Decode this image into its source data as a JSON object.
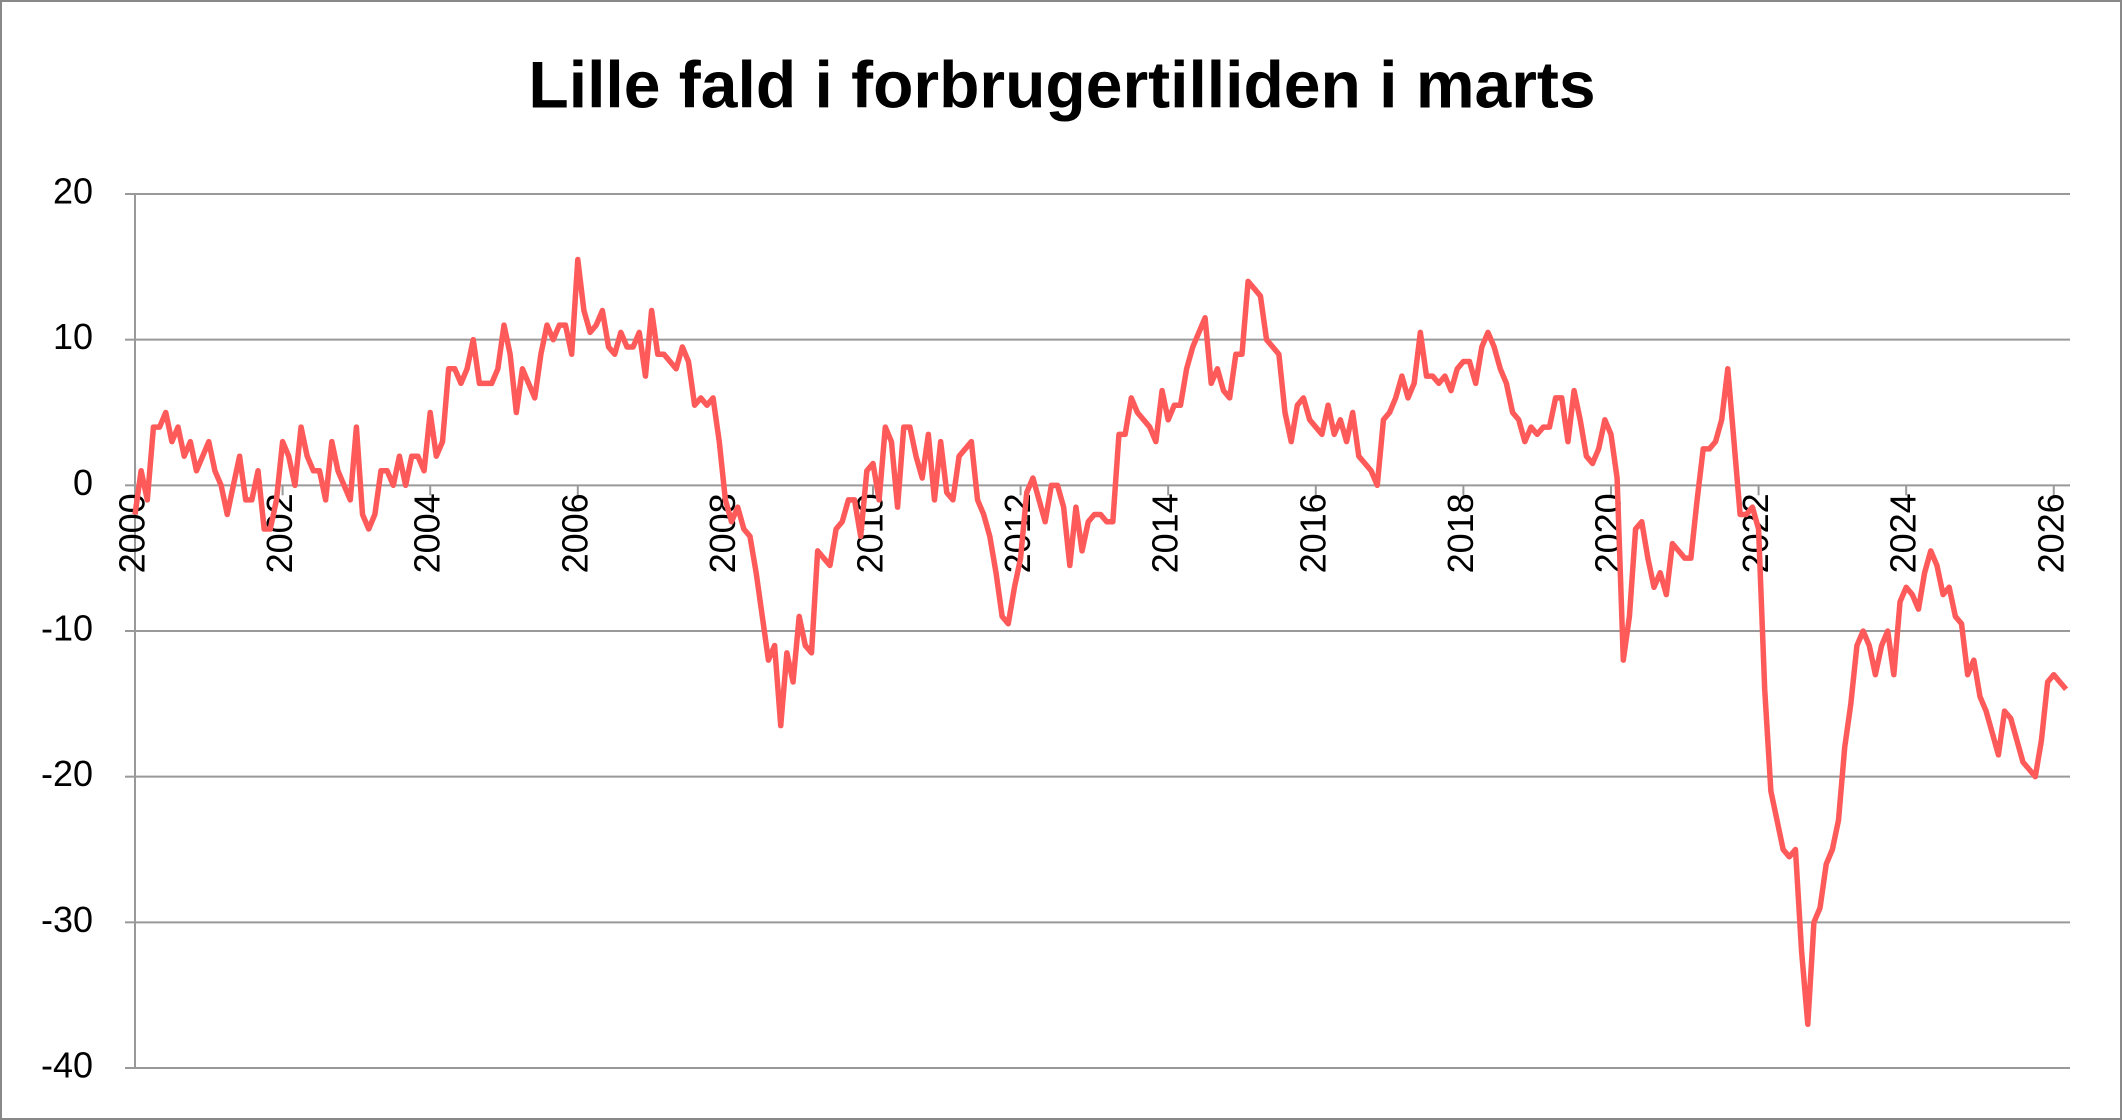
{
  "chart_data": {
    "type": "line",
    "title": "Lille fald i forbrugertilliden i marts",
    "color": "#ff5a5a",
    "grid": true,
    "xlim": [
      2000,
      2026.22
    ],
    "xticks": [
      2000,
      2002,
      2004,
      2006,
      2008,
      2010,
      2012,
      2014,
      2016,
      2018,
      2020,
      2022,
      2024,
      2026
    ],
    "ylim": [
      -40,
      20
    ],
    "yticks": [
      -40,
      -30,
      -20,
      -10,
      0,
      10,
      20
    ],
    "x": [
      2000,
      2000.083,
      2000.167,
      2000.25,
      2000.333,
      2000.417,
      2000.5,
      2000.583,
      2000.667,
      2000.75,
      2000.833,
      2000.917,
      2001,
      2001.083,
      2001.167,
      2001.25,
      2001.333,
      2001.417,
      2001.5,
      2001.583,
      2001.667,
      2001.75,
      2001.833,
      2001.917,
      2002,
      2002.083,
      2002.167,
      2002.25,
      2002.333,
      2002.417,
      2002.5,
      2002.583,
      2002.667,
      2002.75,
      2002.833,
      2002.917,
      2003,
      2003.083,
      2003.167,
      2003.25,
      2003.333,
      2003.417,
      2003.5,
      2003.583,
      2003.667,
      2003.75,
      2003.833,
      2003.917,
      2004,
      2004.083,
      2004.167,
      2004.25,
      2004.333,
      2004.417,
      2004.5,
      2004.583,
      2004.667,
      2004.75,
      2004.833,
      2004.917,
      2005,
      2005.083,
      2005.167,
      2005.25,
      2005.333,
      2005.417,
      2005.5,
      2005.583,
      2005.667,
      2005.75,
      2005.833,
      2005.917,
      2006,
      2006.083,
      2006.167,
      2006.25,
      2006.333,
      2006.417,
      2006.5,
      2006.583,
      2006.667,
      2006.75,
      2006.833,
      2006.917,
      2007,
      2007.083,
      2007.167,
      2007.25,
      2007.333,
      2007.417,
      2007.5,
      2007.583,
      2007.667,
      2007.75,
      2007.833,
      2007.917,
      2008,
      2008.083,
      2008.167,
      2008.25,
      2008.333,
      2008.417,
      2008.5,
      2008.583,
      2008.667,
      2008.75,
      2008.833,
      2008.917,
      2009,
      2009.083,
      2009.167,
      2009.25,
      2009.333,
      2009.417,
      2009.5,
      2009.583,
      2009.667,
      2009.75,
      2009.833,
      2009.917,
      2010,
      2010.083,
      2010.167,
      2010.25,
      2010.333,
      2010.417,
      2010.5,
      2010.583,
      2010.667,
      2010.75,
      2010.833,
      2010.917,
      2011,
      2011.083,
      2011.167,
      2011.25,
      2011.333,
      2011.417,
      2011.5,
      2011.583,
      2011.667,
      2011.75,
      2011.833,
      2011.917,
      2012,
      2012.083,
      2012.167,
      2012.25,
      2012.333,
      2012.417,
      2012.5,
      2012.583,
      2012.667,
      2012.75,
      2012.833,
      2012.917,
      2013,
      2013.083,
      2013.167,
      2013.25,
      2013.333,
      2013.417,
      2013.5,
      2013.583,
      2013.667,
      2013.75,
      2013.833,
      2013.917,
      2014,
      2014.083,
      2014.167,
      2014.25,
      2014.333,
      2014.417,
      2014.5,
      2014.583,
      2014.667,
      2014.75,
      2014.833,
      2014.917,
      2015,
      2015.083,
      2015.167,
      2015.25,
      2015.333,
      2015.417,
      2015.5,
      2015.583,
      2015.667,
      2015.75,
      2015.833,
      2015.917,
      2016,
      2016.083,
      2016.167,
      2016.25,
      2016.333,
      2016.417,
      2016.5,
      2016.583,
      2016.667,
      2016.75,
      2016.833,
      2016.917,
      2017,
      2017.083,
      2017.167,
      2017.25,
      2017.333,
      2017.417,
      2017.5,
      2017.583,
      2017.667,
      2017.75,
      2017.833,
      2017.917,
      2018,
      2018.083,
      2018.167,
      2018.25,
      2018.333,
      2018.417,
      2018.5,
      2018.583,
      2018.667,
      2018.75,
      2018.833,
      2018.917,
      2019,
      2019.083,
      2019.167,
      2019.25,
      2019.333,
      2019.417,
      2019.5,
      2019.583,
      2019.667,
      2019.75,
      2019.833,
      2019.917,
      2020,
      2020.083,
      2020.167,
      2020.25,
      2020.333,
      2020.417,
      2020.5,
      2020.583,
      2020.667,
      2020.75,
      2020.833,
      2020.917,
      2021,
      2021.083,
      2021.167,
      2021.25,
      2021.333,
      2021.417,
      2021.5,
      2021.583,
      2021.667,
      2021.75,
      2021.833,
      2021.917,
      2022,
      2022.083,
      2022.167,
      2022.25,
      2022.333,
      2022.417,
      2022.5,
      2022.583,
      2022.667,
      2022.75,
      2022.833,
      2022.917,
      2023,
      2023.083,
      2023.167,
      2023.25,
      2023.333,
      2023.417,
      2023.5,
      2023.583,
      2023.667,
      2023.75,
      2023.833,
      2023.917,
      2024,
      2024.083,
      2024.167,
      2024.25,
      2024.333,
      2024.417,
      2024.5,
      2024.583,
      2024.667,
      2024.75,
      2024.833,
      2024.917,
      2025,
      2025.083,
      2025.167,
      2025.25,
      2025.333,
      2025.417,
      2025.5,
      2025.583,
      2025.667,
      2025.75,
      2025.833,
      2025.917,
      2026,
      2026.083,
      2026.167
    ],
    "values": [
      -2,
      1,
      -1,
      4,
      4,
      5,
      3,
      4,
      2,
      3,
      1,
      2,
      3,
      1,
      0,
      -2,
      0,
      2,
      -1,
      -1,
      1,
      -3,
      -3,
      -1,
      3,
      2,
      0,
      4,
      2,
      1,
      1,
      -1,
      3,
      1,
      0,
      -1,
      4,
      -2,
      -3,
      -2,
      1,
      1,
      0,
      2,
      0,
      2,
      2,
      1,
      5,
      2,
      3,
      8,
      8,
      7,
      8,
      10,
      7,
      7,
      7,
      8,
      11,
      9,
      5,
      8,
      7,
      6,
      9,
      11,
      10,
      11,
      11,
      9,
      15.5,
      12,
      10.5,
      11,
      12,
      9.5,
      9,
      10.5,
      9.5,
      9.5,
      10.5,
      7.5,
      12,
      9,
      9,
      8.5,
      8,
      9.5,
      8.5,
      5.5,
      6,
      5.5,
      6,
      3,
      -1,
      -2.5,
      -1.5,
      -3,
      -3.5,
      -6,
      -9,
      -12,
      -11,
      -16.5,
      -11.5,
      -13.5,
      -9,
      -11,
      -11.5,
      -4.5,
      -5,
      -5.5,
      -3,
      -2.5,
      -1,
      -1,
      -3.5,
      1,
      1.5,
      -1,
      4,
      3,
      -1.5,
      4,
      4,
      2,
      0.5,
      3.5,
      -1,
      3,
      -0.5,
      -1,
      2,
      2.5,
      3,
      -1,
      -2,
      -3.5,
      -6,
      -9,
      -9.5,
      -7,
      -5,
      -0.5,
      0.5,
      -1,
      -2.5,
      0,
      0,
      -1.5,
      -5.5,
      -1.5,
      -4.5,
      -2.5,
      -2,
      -2,
      -2.5,
      -2.5,
      3.5,
      3.5,
      6,
      5,
      4.5,
      4,
      3,
      6.5,
      4.5,
      5.5,
      5.5,
      8,
      9.5,
      10.5,
      11.5,
      7,
      8,
      6.5,
      6,
      9,
      9,
      14,
      13.5,
      13,
      10,
      9.5,
      9,
      5,
      3,
      5.5,
      6,
      4.5,
      4,
      3.5,
      5.5,
      3.5,
      4.5,
      3,
      5,
      2,
      1.5,
      1,
      0,
      4.5,
      5,
      6,
      7.5,
      6,
      7,
      10.5,
      7.5,
      7.5,
      7,
      7.5,
      6.5,
      8,
      8.5,
      8.5,
      7,
      9.5,
      10.5,
      9.5,
      8,
      7,
      5,
      4.5,
      3,
      4,
      3.5,
      4,
      4,
      6,
      6,
      3,
      6.5,
      4.5,
      2,
      1.5,
      2.5,
      4.5,
      3.5,
      0.5,
      -12,
      -9,
      -3,
      -2.5,
      -5,
      -7,
      -6,
      -7.5,
      -4,
      -4.5,
      -5,
      -5,
      -1,
      2.5,
      2.5,
      3,
      4.5,
      8,
      3,
      -2,
      -2,
      -1.5,
      -3,
      -14,
      -21,
      -23,
      -25,
      -25.5,
      -25,
      -32,
      -37,
      -30,
      -29,
      -26,
      -25,
      -23,
      -18,
      -15,
      -11,
      -10,
      -11,
      -13,
      -11,
      -10,
      -13,
      -8,
      -7,
      -7.5,
      -8.5,
      -6,
      -4.5,
      -5.5,
      -7.5,
      -7,
      -9,
      -9.5,
      -13,
      -12,
      -14.5,
      -15.5,
      -17,
      -18.5,
      -15.5,
      -16,
      -17.5,
      -19,
      -19.5,
      -20,
      -17.5,
      -13.5,
      -13,
      -13.5,
      -14
    ]
  }
}
